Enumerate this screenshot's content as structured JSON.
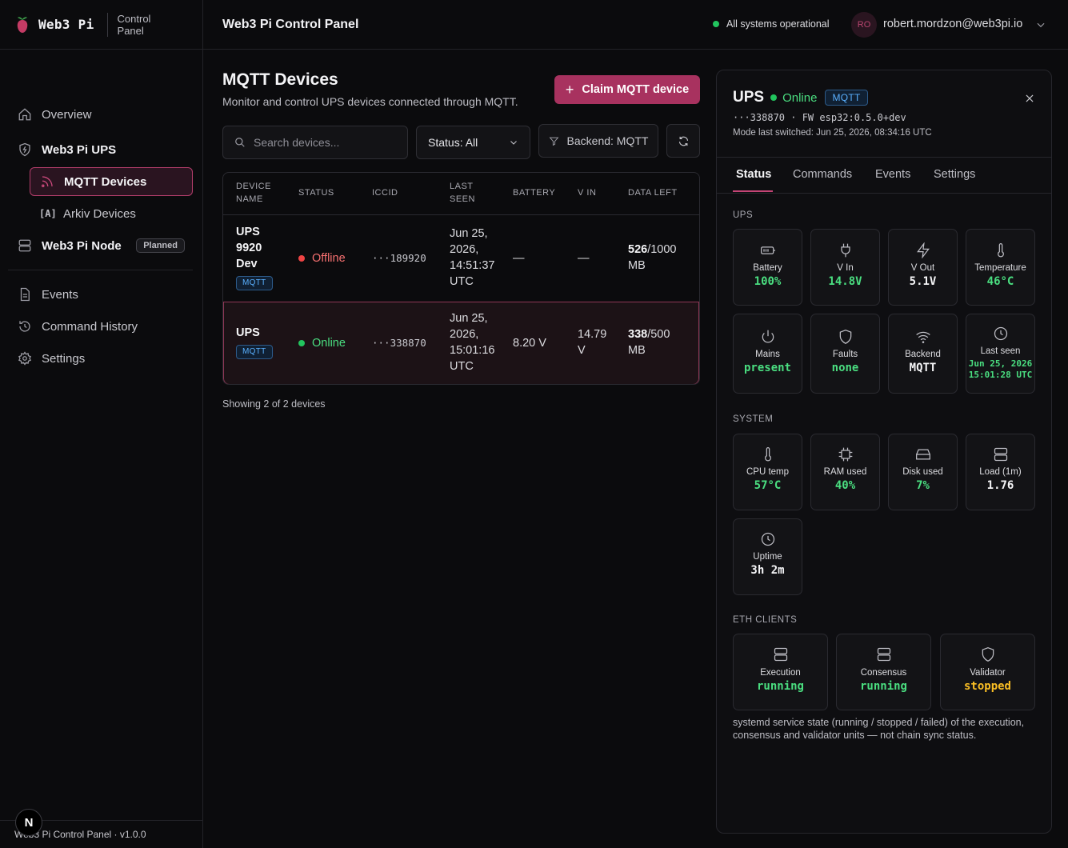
{
  "brand": {
    "name": "Web3 Pi",
    "subtitle": "Control Panel"
  },
  "sidebar": {
    "overview": "Overview",
    "ups": "Web3 Pi UPS",
    "mqtt_devices": "MQTT Devices",
    "arkiv_icon": "[A]",
    "arkiv_devices": "Arkiv Devices",
    "node": "Web3 Pi Node",
    "node_badge": "Planned",
    "events": "Events",
    "command_history": "Command History",
    "settings": "Settings"
  },
  "footer": {
    "text": "Web3 Pi Control Panel · v1.0.0",
    "nextjs_badge": "N"
  },
  "topbar": {
    "title": "Web3 Pi Control Panel",
    "status": "All systems operational",
    "avatar_initials": "RO",
    "user_email": "robert.mordzon@web3pi.io"
  },
  "main": {
    "title": "MQTT Devices",
    "subtitle": "Monitor and control UPS devices connected through MQTT.",
    "claim_button": "Claim MQTT device",
    "search_placeholder": "Search devices...",
    "status_filter": "Status: All",
    "backend_filter": "Backend: MQTT",
    "showing": "Showing 2 of 2 devices"
  },
  "table": {
    "headers": {
      "name1": "DEVICE",
      "name2": "NAME",
      "status": "STATUS",
      "iccid": "ICCID",
      "seen1": "LAST",
      "seen2": "SEEN",
      "battery": "BATTERY",
      "vin": "V IN",
      "data_left": "DATA LEFT"
    },
    "rows": [
      {
        "name_lines": [
          "UPS",
          "9920",
          "Dev"
        ],
        "tag": "MQTT",
        "status": "Offline",
        "iccid": "···189920",
        "last_seen_lines": [
          "Jun 25,",
          "2026,",
          "14:51:37",
          "UTC"
        ],
        "battery": "—",
        "vin": "—",
        "data_used": "526",
        "data_total": "/1000",
        "data_unit": "MB"
      },
      {
        "name_lines": [
          "UPS"
        ],
        "tag": "MQTT",
        "status": "Online",
        "iccid": "···338870",
        "last_seen_lines": [
          "Jun 25,",
          "2026,",
          "15:01:16",
          "UTC"
        ],
        "battery": "8.20 V",
        "vin_lines": [
          "14.79",
          "V"
        ],
        "data_used": "338",
        "data_total": "/500",
        "data_unit": "MB"
      }
    ]
  },
  "panel": {
    "name": "UPS",
    "status": "Online",
    "tag": "MQTT",
    "meta": "···338870 · FW esp32:0.5.0+dev",
    "mode_switched": "Mode last switched: Jun 25, 2026, 08:34:16 UTC",
    "tabs": [
      "Status",
      "Commands",
      "Events",
      "Settings"
    ],
    "ups_label": "UPS",
    "ups_cards": [
      {
        "label": "Battery",
        "value": "100%"
      },
      {
        "label": "V In",
        "value": "14.8V"
      },
      {
        "label": "V Out",
        "value": "5.1V"
      },
      {
        "label": "Temperature",
        "value": "46°C"
      },
      {
        "label": "Mains",
        "value": "present"
      },
      {
        "label": "Faults",
        "value": "none"
      },
      {
        "label": "Backend",
        "value": "MQTT"
      },
      {
        "label": "Last seen",
        "value_lines": [
          "Jun 25, 2026",
          "15:01:28 UTC"
        ]
      }
    ],
    "system_label": "SYSTEM",
    "system_cards": [
      {
        "label": "CPU temp",
        "value": "57°C"
      },
      {
        "label": "RAM used",
        "value": "40%"
      },
      {
        "label": "Disk used",
        "value": "7%"
      },
      {
        "label": "Load (1m)",
        "value": "1.76"
      },
      {
        "label": "Uptime",
        "value": "3h 2m"
      }
    ],
    "eth_label": "ETH CLIENTS",
    "eth_cards": [
      {
        "label": "Execution",
        "value": "running"
      },
      {
        "label": "Consensus",
        "value": "running"
      },
      {
        "label": "Validator",
        "value": "stopped"
      }
    ],
    "note": "systemd service state (running / stopped / failed) of the execution, consensus and validator units — not chain sync status."
  }
}
